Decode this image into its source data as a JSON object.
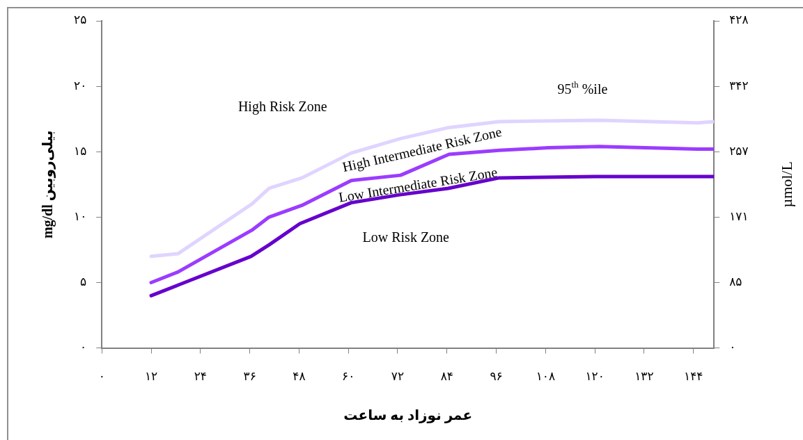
{
  "chart_data": {
    "type": "line",
    "xlabel": "عمر نوزاد به ساعت",
    "ylabel": "mg/dl بیلی‌روبین",
    "y2label": "µmol/L",
    "series": [
      {
        "color": "#e0d4ff",
        "x": [
          12,
          18.5,
          36.5,
          40.7,
          48.7,
          60.7,
          72.7,
          84.5,
          96.7,
          121,
          145,
          149
        ],
        "values": [
          7.0,
          7.2,
          11.0,
          12.2,
          13.0,
          14.9,
          16.0,
          16.85,
          17.3,
          17.4,
          17.2,
          17.3
        ]
      },
      {
        "color": "#9b3cff",
        "x": [
          12,
          18.5,
          36.5,
          40.7,
          48.7,
          60.7,
          72.7,
          84.5,
          96.7,
          108.7,
          121,
          145,
          149
        ],
        "values": [
          5.0,
          5.8,
          9.0,
          10.0,
          10.9,
          12.8,
          13.2,
          14.8,
          15.1,
          15.3,
          15.4,
          15.2,
          15.2
        ]
      },
      {
        "color": "#6600cc",
        "x": [
          12,
          18.5,
          36.3,
          40.8,
          48.2,
          60.7,
          72.3,
          84.3,
          96.7,
          120,
          149
        ],
        "values": [
          4.0,
          4.8,
          7.0,
          7.9,
          9.5,
          11.1,
          11.7,
          12.2,
          13.0,
          13.1,
          13.1
        ]
      }
    ],
    "xlim": [
      0,
      149
    ],
    "xticks": [
      {
        "value": 0,
        "label": "۰"
      },
      {
        "value": 12,
        "label": "۱۲"
      },
      {
        "value": 24,
        "label": "۲۴"
      },
      {
        "value": 36,
        "label": "۳۶"
      },
      {
        "value": 48,
        "label": "۴۸"
      },
      {
        "value": 60,
        "label": "۶۰"
      },
      {
        "value": 72,
        "label": "۷۲"
      },
      {
        "value": 84,
        "label": "۸۴"
      },
      {
        "value": 96,
        "label": "۹۶"
      },
      {
        "value": 108,
        "label": "۱۰۸"
      },
      {
        "value": 120,
        "label": "۱۲۰"
      },
      {
        "value": 132,
        "label": "۱۳۲"
      },
      {
        "value": 144,
        "label": "۱۴۴"
      }
    ],
    "ylim": [
      0,
      25
    ],
    "yticks": [
      {
        "value": 0,
        "label": "۰"
      },
      {
        "value": 5,
        "label": "۵"
      },
      {
        "value": 10,
        "label": "۱۰"
      },
      {
        "value": 15,
        "label": "۱۵"
      },
      {
        "value": 20,
        "label": "۲۰"
      },
      {
        "value": 25,
        "label": "۲۵"
      }
    ],
    "y2lim": [
      0,
      427.5
    ],
    "y2ticks": [
      {
        "value": 0,
        "label": "۰"
      },
      {
        "value": 85.5,
        "label": "۸۵"
      },
      {
        "value": 171,
        "label": "۱۷۱"
      },
      {
        "value": 256.5,
        "label": "۲۵۷"
      },
      {
        "value": 342,
        "label": "۳۴۲"
      },
      {
        "value": 427.5,
        "label": "۴۲۸"
      }
    ],
    "annotations": [
      "High Risk Zone",
      "95$^{th}$ %ile",
      "High Intermediate Risk Zone",
      "Low Intermediate Risk Zone",
      "Low Risk Zone"
    ],
    "grid": false,
    "legend": false,
    "marker": "none",
    "line_style": "solid"
  }
}
